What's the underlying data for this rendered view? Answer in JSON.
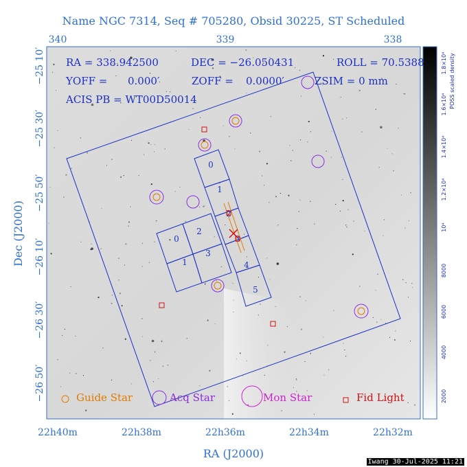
{
  "title": "Name NGC 7314, Seq # 705280, Obsid 30225, ST Scheduled",
  "info": {
    "ra": "RA = 338.942500",
    "dec": "DEC = −26.050431",
    "roll": "ROLL = 70.5388",
    "yoff": "YOFF =",
    "yoff_val": "0.000′",
    "zoff": "ZOFF =",
    "zoff_val": "0.0000′",
    "zsim": "ZSIM = 0 mm",
    "acis": "ACIS PB = WT00D50014"
  },
  "axes": {
    "xlabel": "RA (J2000)",
    "ylabel": "Dec (J2000)",
    "top_ticks": [
      "340",
      "339",
      "338"
    ],
    "bottom_ticks": [
      "22h40m",
      "22h38m",
      "22h36m",
      "22h34m",
      "22h32m"
    ],
    "left_ticks": [
      "−25 10′",
      "−25 30′",
      "−25 50′",
      "−26 10′",
      "−26 30′",
      "−26 50′"
    ],
    "colorbar_label": "POSS scaled density",
    "colorbar_ticks": [
      "2000",
      "4000",
      "6000",
      "8000",
      "10⁴",
      "1.2×10⁴",
      "1.4×10⁴",
      "1.6×10⁴",
      "1.8×10⁴"
    ]
  },
  "ccds": {
    "i_array": [
      "0",
      "1",
      "2",
      "3"
    ],
    "s_array": [
      "0",
      "1",
      "2",
      "3",
      "4",
      "5"
    ]
  },
  "legend": {
    "guide": "Guide Star",
    "acq": "Acq Star",
    "mon": "Mon Star",
    "fid": "Fid Light"
  },
  "footer": "Iwang 30-Jul-2025 11:21",
  "colors": {
    "axis_text": "#2f6fd6",
    "overlay": "#1a2fc8",
    "guide": "#e07a00",
    "acq": "#8a2be2",
    "mon": "#d020d0",
    "fid": "#d01010"
  }
}
